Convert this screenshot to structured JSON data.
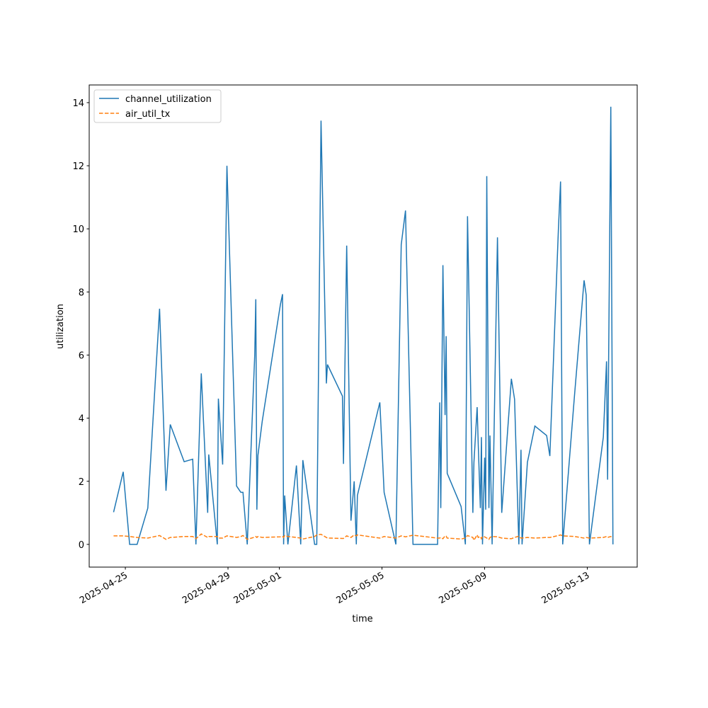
{
  "chart_data": {
    "type": "line",
    "x_label": "time",
    "y_label": "utilization",
    "x": [
      "2025-04-24T13:00",
      "2025-04-24T22:00",
      "2025-04-25T04:00",
      "2025-04-25T11:00",
      "2025-04-25T21:00",
      "2025-04-26T08:00",
      "2025-04-26T14:00",
      "2025-04-26T18:00",
      "2025-04-27T07:00",
      "2025-04-27T15:00",
      "2025-04-27T18:00",
      "2025-04-27T23:00",
      "2025-04-28T05:00",
      "2025-04-28T06:00",
      "2025-04-28T14:00",
      "2025-04-28T15:00",
      "2025-04-28T19:00",
      "2025-04-28T23:00",
      "2025-04-29T08:00",
      "2025-04-29T12:00",
      "2025-04-29T14:00",
      "2025-04-29T18:00",
      "2025-04-30T01:00",
      "2025-04-30T02:00",
      "2025-04-30T03:00",
      "2025-04-30T04:00",
      "2025-04-30T08:00",
      "2025-05-01T01:00",
      "2025-05-01T03:00",
      "2025-05-01T04:00",
      "2025-05-01T05:00",
      "2025-05-01T08:00",
      "2025-05-01T16:00",
      "2025-05-01T20:00",
      "2025-05-01T22:00",
      "2025-05-02T09:00",
      "2025-05-02T11:00",
      "2025-05-02T15:00",
      "2025-05-02T20:00",
      "2025-05-02T21:00",
      "2025-05-03T11:00",
      "2025-05-03T12:00",
      "2025-05-03T15:00",
      "2025-05-03T19:00",
      "2025-05-03T22:00",
      "2025-05-04T00:00",
      "2025-05-04T01:00",
      "2025-05-04T22:00",
      "2025-05-05T02:00",
      "2025-05-05T13:00",
      "2025-05-05T18:00",
      "2025-05-05T22:00",
      "2025-05-06T05:00",
      "2025-05-07T04:00",
      "2025-05-07T06:00",
      "2025-05-07T07:00",
      "2025-05-07T09:00",
      "2025-05-07T11:00",
      "2025-05-07T12:00",
      "2025-05-07T13:00",
      "2025-05-08T02:00",
      "2025-05-08T06:00",
      "2025-05-08T08:00",
      "2025-05-08T13:00",
      "2025-05-08T14:00",
      "2025-05-08T17:00",
      "2025-05-08T18:00",
      "2025-05-08T20:00",
      "2025-05-08T21:00",
      "2025-05-08T22:00",
      "2025-05-09T00:00",
      "2025-05-09T01:00",
      "2025-05-09T02:00",
      "2025-05-09T04:00",
      "2025-05-09T05:00",
      "2025-05-09T07:00",
      "2025-05-09T12:00",
      "2025-05-09T16:00",
      "2025-05-10T01:00",
      "2025-05-10T04:00",
      "2025-05-10T08:00",
      "2025-05-10T10:00",
      "2025-05-10T11:00",
      "2025-05-10T16:00",
      "2025-05-10T23:00",
      "2025-05-11T10:00",
      "2025-05-11T13:00",
      "2025-05-11T21:00",
      "2025-05-11T23:00",
      "2025-05-12T01:00",
      "2025-05-12T12:00",
      "2025-05-12T21:00",
      "2025-05-12T23:00",
      "2025-05-13T02:00",
      "2025-05-13T15:00",
      "2025-05-13T18:00",
      "2025-05-13T19:00",
      "2025-05-13T22:00",
      "2025-05-14T00:00"
    ],
    "series": [
      {
        "name": "channel_utilization",
        "color": "#1f77b4",
        "dash": false,
        "values": [
          1.02,
          2.3,
          0,
          0,
          1.15,
          7.47,
          1.7,
          3.8,
          2.62,
          2.7,
          0,
          5.42,
          1.0,
          2.85,
          0,
          4.62,
          2.53,
          12.0,
          1.85,
          1.65,
          1.65,
          0,
          6.0,
          7.77,
          1.1,
          2.82,
          3.9,
          7.6,
          7.93,
          0,
          1.55,
          0,
          2.5,
          0,
          2.67,
          0,
          0,
          13.43,
          5.1,
          5.7,
          4.7,
          2.55,
          9.47,
          0.75,
          2.0,
          0,
          1.55,
          4.5,
          1.65,
          0,
          9.5,
          10.58,
          0,
          0,
          4.5,
          1.15,
          8.85,
          4.1,
          6.6,
          2.25,
          1.2,
          0,
          10.4,
          1.0,
          2.6,
          4.35,
          3.2,
          1.15,
          3.4,
          0,
          2.75,
          1.1,
          11.67,
          1.15,
          3.45,
          0,
          9.73,
          1.0,
          5.25,
          4.6,
          0,
          3.0,
          0,
          2.6,
          3.75,
          3.45,
          2.8,
          10.0,
          11.5,
          0,
          4.7,
          8.37,
          7.9,
          0,
          3.4,
          5.8,
          2.05,
          13.87,
          0
        ]
      },
      {
        "name": "air_util_tx",
        "color": "#ff7f0e",
        "dash": true,
        "values": [
          0.27,
          0.27,
          0.25,
          0.22,
          0.2,
          0.28,
          0.16,
          0.22,
          0.25,
          0.25,
          0.18,
          0.33,
          0.22,
          0.25,
          0.25,
          0.2,
          0.2,
          0.27,
          0.22,
          0.25,
          0.28,
          0.16,
          0.23,
          0.25,
          0.22,
          0.25,
          0.22,
          0.24,
          0.25,
          0.22,
          0.28,
          0.25,
          0.22,
          0.2,
          0.17,
          0.25,
          0.3,
          0.32,
          0.22,
          0.2,
          0.19,
          0.19,
          0.27,
          0.22,
          0.3,
          0.27,
          0.3,
          0.2,
          0.25,
          0.2,
          0.27,
          0.24,
          0.29,
          0.2,
          0.2,
          0.22,
          0.18,
          0.27,
          0.26,
          0.2,
          0.17,
          0.2,
          0.28,
          0.22,
          0.13,
          0.3,
          0.22,
          0.25,
          0.18,
          0.25,
          0.24,
          0.22,
          0.2,
          0.16,
          0.22,
          0.25,
          0.24,
          0.2,
          0.18,
          0.22,
          0.26,
          0.2,
          0.2,
          0.22,
          0.2,
          0.22,
          0.22,
          0.28,
          0.3,
          0.27,
          0.25,
          0.2,
          0.22,
          0.2,
          0.22,
          0.25,
          0.22,
          0.25,
          0.2
        ]
      }
    ],
    "xlim": [
      "2025-04-23T14:12",
      "2025-05-14T22:41"
    ],
    "xticks": [
      "2025-04-25",
      "2025-04-29",
      "2025-05-01",
      "2025-05-05",
      "2025-05-09",
      "2025-05-13"
    ],
    "ylim": [
      -0.72,
      14.56
    ],
    "yticks": [
      0,
      2,
      4,
      6,
      8,
      10,
      12,
      14
    ],
    "legend": "upper left"
  }
}
